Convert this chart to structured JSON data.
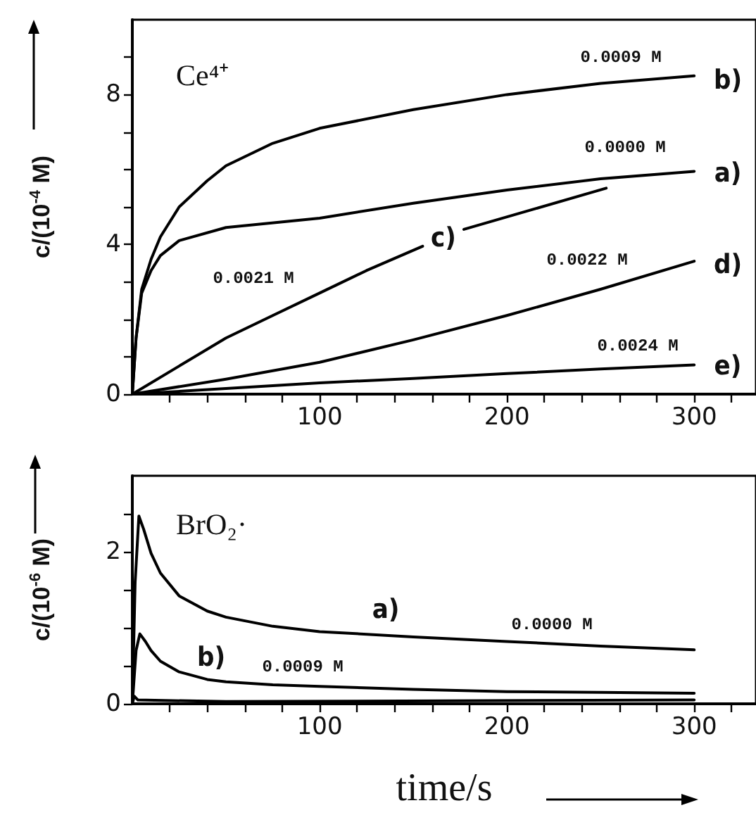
{
  "chart_data": [
    {
      "type": "line",
      "title": "Ce⁴⁺",
      "ylabel": "c/(10$^{-4}$ M)",
      "marker": "none",
      "xlim": [
        0,
        333
      ],
      "xticks": [
        {
          "value": 20,
          "label": null
        },
        {
          "value": 40,
          "label": null
        },
        {
          "value": 60,
          "label": null
        },
        {
          "value": 80,
          "label": null
        },
        100,
        {
          "value": 120,
          "label": null
        },
        {
          "value": 140,
          "label": null
        },
        {
          "value": 160,
          "label": null
        },
        {
          "value": 180,
          "label": null
        },
        200,
        {
          "value": 220,
          "label": null
        },
        {
          "value": 240,
          "label": null
        },
        {
          "value": 260,
          "label": null
        },
        {
          "value": 280,
          "label": null
        },
        300,
        {
          "value": 320,
          "label": null
        }
      ],
      "ylim": [
        0,
        10
      ],
      "yticks": [
        0,
        {
          "value": 1,
          "label": null
        },
        {
          "value": 2,
          "label": null
        },
        {
          "value": 3,
          "label": null
        },
        4,
        {
          "value": 5,
          "label": null
        },
        {
          "value": 6,
          "label": null
        },
        {
          "value": 7,
          "label": null
        },
        8,
        {
          "value": 9,
          "label": null
        }
      ],
      "series": [
        {
          "color": "#000000",
          "x": [
            0,
            2,
            5,
            10,
            15,
            25,
            40,
            50,
            75,
            100,
            150,
            200,
            250,
            300
          ],
          "values": [
            0,
            1.5,
            2.8,
            3.6,
            4.2,
            5.0,
            5.7,
            6.1,
            6.7,
            7.1,
            7.6,
            8.0,
            8.3,
            8.5
          ]
        },
        {
          "color": "#000000",
          "x": [
            0,
            2,
            5,
            10,
            15,
            25,
            50,
            100,
            150,
            200,
            250,
            300
          ],
          "values": [
            0,
            1.5,
            2.7,
            3.3,
            3.7,
            4.1,
            4.45,
            4.7,
            5.1,
            5.45,
            5.75,
            5.95
          ]
        },
        {
          "color": "#000000",
          "x": [
            0,
            25,
            50,
            75,
            100,
            125,
            155,
            165,
            177,
            215,
            253
          ],
          "values": [
            0,
            0.75,
            1.5,
            2.1,
            2.7,
            3.3,
            3.95,
            null,
            4.4,
            4.95,
            5.5
          ]
        },
        {
          "color": "#000000",
          "x": [
            0,
            50,
            100,
            150,
            200,
            250,
            300
          ],
          "values": [
            0,
            0.4,
            0.85,
            1.45,
            2.1,
            2.8,
            3.55
          ]
        },
        {
          "color": "#000000",
          "x": [
            0,
            50,
            100,
            150,
            200,
            250,
            300
          ],
          "values": [
            0,
            0.15,
            0.3,
            0.42,
            0.55,
            0.67,
            0.78
          ]
        }
      ],
      "annotations": [
        "0.0009 M",
        "b)",
        "0.0000 M",
        "a)",
        "0.0021 M",
        "c)",
        "0.0022 M",
        "d)",
        "0.0024 M",
        "e)"
      ]
    },
    {
      "type": "line",
      "title": "BrO₂·",
      "xlabel": "time/s",
      "ylabel": "c/(10$^{-6}$ M)",
      "marker": "none",
      "xlim": [
        0,
        333
      ],
      "xticks": [
        {
          "value": 20,
          "label": null
        },
        {
          "value": 40,
          "label": null
        },
        {
          "value": 60,
          "label": null
        },
        {
          "value": 80,
          "label": null
        },
        100,
        {
          "value": 120,
          "label": null
        },
        {
          "value": 140,
          "label": null
        },
        {
          "value": 160,
          "label": null
        },
        {
          "value": 180,
          "label": null
        },
        200,
        {
          "value": 220,
          "label": null
        },
        {
          "value": 240,
          "label": null
        },
        {
          "value": 260,
          "label": null
        },
        {
          "value": 280,
          "label": null
        },
        300,
        {
          "value": 320,
          "label": null
        }
      ],
      "ylim": [
        0,
        3
      ],
      "yticks": [
        0,
        {
          "value": 0.5,
          "label": null
        },
        {
          "value": 1,
          "label": null
        },
        {
          "value": 1.5,
          "label": null
        },
        2,
        {
          "value": 2.5,
          "label": null
        }
      ],
      "series": [
        {
          "color": "#000000",
          "x": [
            0,
            1.5,
            3.5,
            6,
            10,
            15,
            25,
            40,
            50,
            75,
            100,
            150,
            200,
            250,
            300
          ],
          "values": [
            0,
            1.6,
            2.47,
            2.3,
            1.98,
            1.72,
            1.42,
            1.22,
            1.14,
            1.02,
            0.95,
            0.88,
            0.82,
            0.76,
            0.71
          ]
        },
        {
          "color": "#000000",
          "x": [
            0,
            2,
            4,
            7,
            10,
            15,
            25,
            40,
            50,
            75,
            100,
            150,
            200,
            250,
            300
          ],
          "values": [
            0,
            0.7,
            0.92,
            0.82,
            0.7,
            0.56,
            0.42,
            0.32,
            0.29,
            0.25,
            0.23,
            0.19,
            0.16,
            0.15,
            0.14
          ]
        },
        {
          "color": "#000000",
          "x": [
            0,
            1,
            3,
            50,
            300
          ],
          "values": [
            0,
            0.1,
            0.05,
            0.03,
            0.05
          ]
        }
      ],
      "annotations": [
        "a)",
        "0.0000 M",
        "b)",
        "0.0009 M"
      ]
    }
  ]
}
